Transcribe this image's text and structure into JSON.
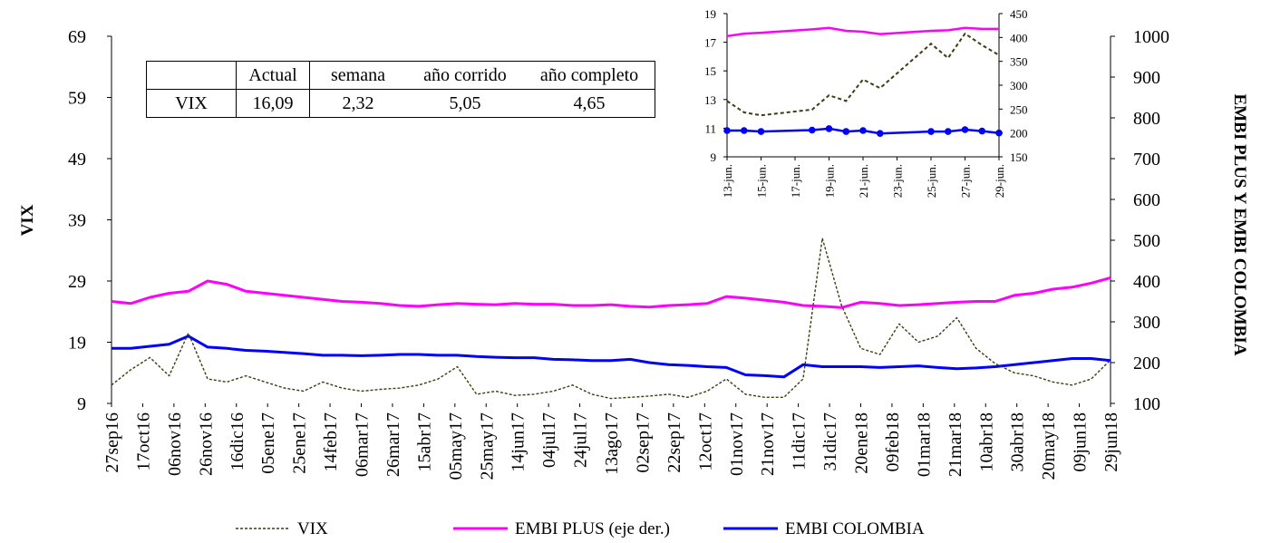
{
  "chart_data": [
    {
      "type": "line",
      "ylabel_left": "VIX",
      "ylabel_right": "EMBI PLUS Y EMBI COLOMBIA",
      "y_left": {
        "min": 9,
        "max": 69,
        "ticks": [
          "69",
          "59",
          "49",
          "39",
          "29",
          "19",
          "9"
        ]
      },
      "y_right": {
        "min": 100,
        "max": 1000,
        "ticks": [
          "1000",
          "900",
          "800",
          "700",
          "600",
          "500",
          "400",
          "300",
          "200",
          "100"
        ]
      },
      "x_tick_labels": [
        "27sep16",
        "17oct16",
        "06nov16",
        "26nov16",
        "16dic16",
        "05ene17",
        "25ene17",
        "14feb17",
        "06mar17",
        "26mar17",
        "15abr17",
        "05may17",
        "25may17",
        "14jun17",
        "04jul17",
        "24jul17",
        "13ago17",
        "02sep17",
        "22sep17",
        "12oct17",
        "01nov17",
        "21nov17",
        "11dic17",
        "31dic17",
        "20ene18",
        "09feb18",
        "01mar18",
        "21mar18",
        "10abr18",
        "30abr18",
        "20may18",
        "09jun18",
        "29jun18"
      ],
      "series": [
        {
          "name": "VIX",
          "axis": "left",
          "color": "#3d3d10",
          "style": "dashed",
          "values": [
            12.0,
            14.5,
            16.5,
            13.5,
            20.5,
            13.0,
            12.5,
            13.5,
            12.5,
            11.5,
            11.0,
            12.5,
            11.5,
            11.0,
            11.3,
            11.5,
            12.0,
            13.0,
            15.0,
            10.5,
            11.0,
            10.3,
            10.5,
            11.0,
            12.0,
            10.5,
            9.8,
            10.0,
            10.2,
            10.5,
            10.0,
            11.0,
            13.0,
            10.5,
            10.0,
            10.0,
            13.0,
            36.0,
            25.0,
            18.0,
            17.0,
            22.0,
            19.0,
            20.0,
            23.0,
            18.0,
            15.5,
            14.0,
            13.5,
            12.5,
            12.0,
            13.0,
            16.09
          ]
        },
        {
          "name": "EMBI PLUS (eje der.)",
          "axis": "right",
          "color": "#ff00ff",
          "style": "solid",
          "values": [
            350,
            345,
            360,
            370,
            375,
            400,
            392,
            375,
            370,
            365,
            360,
            355,
            350,
            348,
            345,
            340,
            338,
            342,
            345,
            343,
            342,
            345,
            343,
            343,
            340,
            340,
            342,
            338,
            336,
            340,
            342,
            345,
            362,
            358,
            353,
            348,
            340,
            338,
            335,
            348,
            345,
            340,
            342,
            345,
            348,
            350,
            350,
            365,
            370,
            380,
            385,
            395,
            408
          ]
        },
        {
          "name": "EMBI COLOMBIA",
          "axis": "right",
          "color": "#0000ff",
          "style": "solid",
          "values": [
            235,
            235,
            240,
            245,
            265,
            238,
            235,
            230,
            228,
            225,
            222,
            218,
            218,
            217,
            218,
            220,
            220,
            218,
            218,
            215,
            213,
            212,
            212,
            208,
            207,
            205,
            205,
            208,
            200,
            195,
            193,
            190,
            188,
            170,
            168,
            165,
            195,
            190,
            190,
            190,
            188,
            190,
            192,
            188,
            185,
            187,
            190,
            195,
            200,
            205,
            210,
            210,
            205
          ]
        }
      ]
    },
    {
      "type": "line",
      "inset": true,
      "y_left": {
        "min": 9,
        "max": 19,
        "ticks": [
          "19",
          "17",
          "15",
          "13",
          "11",
          "9"
        ]
      },
      "y_right": {
        "min": 150,
        "max": 450,
        "ticks": [
          "450",
          "400",
          "350",
          "300",
          "250",
          "200",
          "150"
        ]
      },
      "x_tick_labels": [
        "13-jun.",
        "15-jun.",
        "17-jun.",
        "19-jun.",
        "21-jun.",
        "23-jun.",
        "25-jun.",
        "27-jun.",
        "29-jun."
      ],
      "series": [
        {
          "name": "VIX",
          "axis": "left",
          "color": "#3d3d10",
          "style": "dashed",
          "markers": false,
          "values": [
            [
              13,
              12.9
            ],
            [
              14,
              12.1
            ],
            [
              15,
              11.9
            ],
            [
              18,
              12.3
            ],
            [
              19,
              13.3
            ],
            [
              20,
              12.9
            ],
            [
              21,
              14.4
            ],
            [
              22,
              13.8
            ],
            [
              25,
              16.9
            ],
            [
              26,
              15.9
            ],
            [
              27,
              17.6
            ],
            [
              28,
              16.8
            ],
            [
              29,
              16.1
            ]
          ]
        },
        {
          "name": "EMBI PLUS (eje der.)",
          "axis": "right",
          "color": "#ff00ff",
          "style": "solid",
          "markers": false,
          "values": [
            [
              13,
              403
            ],
            [
              14,
              408
            ],
            [
              15,
              410
            ],
            [
              18,
              417
            ],
            [
              19,
              420
            ],
            [
              20,
              414
            ],
            [
              21,
              412
            ],
            [
              22,
              407
            ],
            [
              25,
              414
            ],
            [
              26,
              415
            ],
            [
              27,
              420
            ],
            [
              28,
              418
            ],
            [
              29,
              418
            ]
          ]
        },
        {
          "name": "EMBI COLOMBIA",
          "axis": "right",
          "color": "#0000ff",
          "style": "solid",
          "markers": true,
          "values": [
            [
              13,
              205
            ],
            [
              14,
              205
            ],
            [
              15,
              203
            ],
            [
              18,
              206
            ],
            [
              19,
              209
            ],
            [
              20,
              203
            ],
            [
              21,
              205
            ],
            [
              22,
              199
            ],
            [
              25,
              203
            ],
            [
              26,
              203
            ],
            [
              27,
              207
            ],
            [
              28,
              204
            ],
            [
              29,
              200
            ]
          ]
        }
      ]
    }
  ],
  "table": {
    "headers": [
      "",
      "Actual",
      "semana",
      "año corrido",
      "año completo"
    ],
    "rows": [
      [
        "VIX",
        "16,09",
        "2,32",
        "5,05",
        "4,65"
      ]
    ]
  },
  "legend": [
    {
      "label": "VIX",
      "color": "#3d3d10",
      "style": "dashed"
    },
    {
      "label": "EMBI PLUS (eje der.)",
      "color": "#ff00ff",
      "style": "solid"
    },
    {
      "label": "EMBI COLOMBIA",
      "color": "#0000ff",
      "style": "solid"
    }
  ]
}
